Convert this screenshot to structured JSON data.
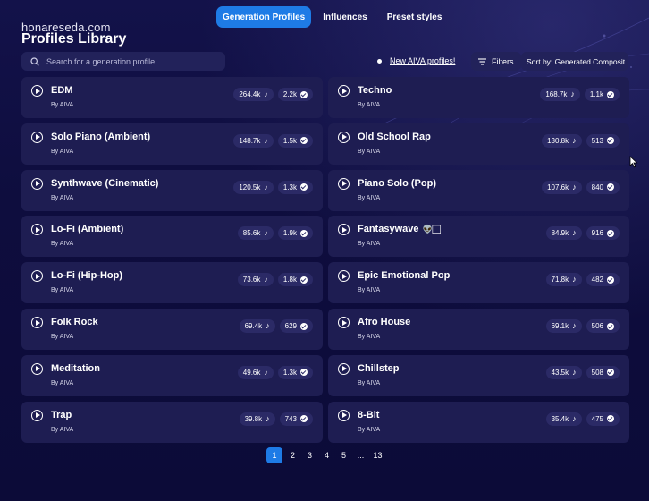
{
  "tabs": [
    {
      "label": "Generation Profiles",
      "active": true
    },
    {
      "label": "Influences",
      "active": false
    },
    {
      "label": "Preset styles",
      "active": false
    }
  ],
  "watermark": "honareseda.com",
  "page_title": "Profiles Library",
  "search": {
    "placeholder": "Search for a generation profile",
    "icon": "search-icon"
  },
  "new_link": "New AIVA profiles!",
  "filters_label": "Filters",
  "sort_label": "Sort by: Generated Composit",
  "left_column": [
    {
      "name": "EDM",
      "by": "By AIVA",
      "plays": "264.4k",
      "generated": "2.2k"
    },
    {
      "name": "Solo Piano (Ambient)",
      "by": "By AIVA",
      "plays": "148.7k",
      "generated": "1.5k"
    },
    {
      "name": "Synthwave (Cinematic)",
      "by": "By AIVA",
      "plays": "120.5k",
      "generated": "1.3k"
    },
    {
      "name": "Lo-Fi (Ambient)",
      "by": "By AIVA",
      "plays": "85.6k",
      "generated": "1.9k"
    },
    {
      "name": "Lo-Fi (Hip-Hop)",
      "by": "By AIVA",
      "plays": "73.6k",
      "generated": "1.8k"
    },
    {
      "name": "Folk Rock",
      "by": "By AIVA",
      "plays": "69.4k",
      "generated": "629"
    },
    {
      "name": "Meditation",
      "by": "By AIVA",
      "plays": "49.6k",
      "generated": "1.3k"
    },
    {
      "name": "Trap",
      "by": "By AIVA",
      "plays": "39.8k",
      "generated": "743"
    }
  ],
  "right_column": [
    {
      "name": "Techno",
      "by": "By AIVA",
      "plays": "168.7k",
      "generated": "1.1k"
    },
    {
      "name": "Old School Rap",
      "by": "By AIVA",
      "plays": "130.8k",
      "generated": "513"
    },
    {
      "name": "Piano Solo (Pop)",
      "by": "By AIVA",
      "plays": "107.6k",
      "generated": "840"
    },
    {
      "name": "Fantasywave",
      "emoji": "👽🏻",
      "by": "By AIVA",
      "plays": "84.9k",
      "generated": "916"
    },
    {
      "name": "Epic Emotional Pop",
      "by": "By AIVA",
      "plays": "71.8k",
      "generated": "482"
    },
    {
      "name": "Afro House",
      "by": "By AIVA",
      "plays": "69.1k",
      "generated": "506"
    },
    {
      "name": "Chillstep",
      "by": "By AIVA",
      "plays": "43.5k",
      "generated": "508"
    },
    {
      "name": "8-Bit",
      "by": "By AIVA",
      "plays": "35.4k",
      "generated": "475"
    }
  ],
  "pagination": [
    "1",
    "2",
    "3",
    "4",
    "5",
    "...",
    "13"
  ],
  "colors": {
    "background": "#0e0d3e",
    "card": "#1e1d52",
    "accent": "#1e7be6",
    "pill": "#2b2a66"
  }
}
